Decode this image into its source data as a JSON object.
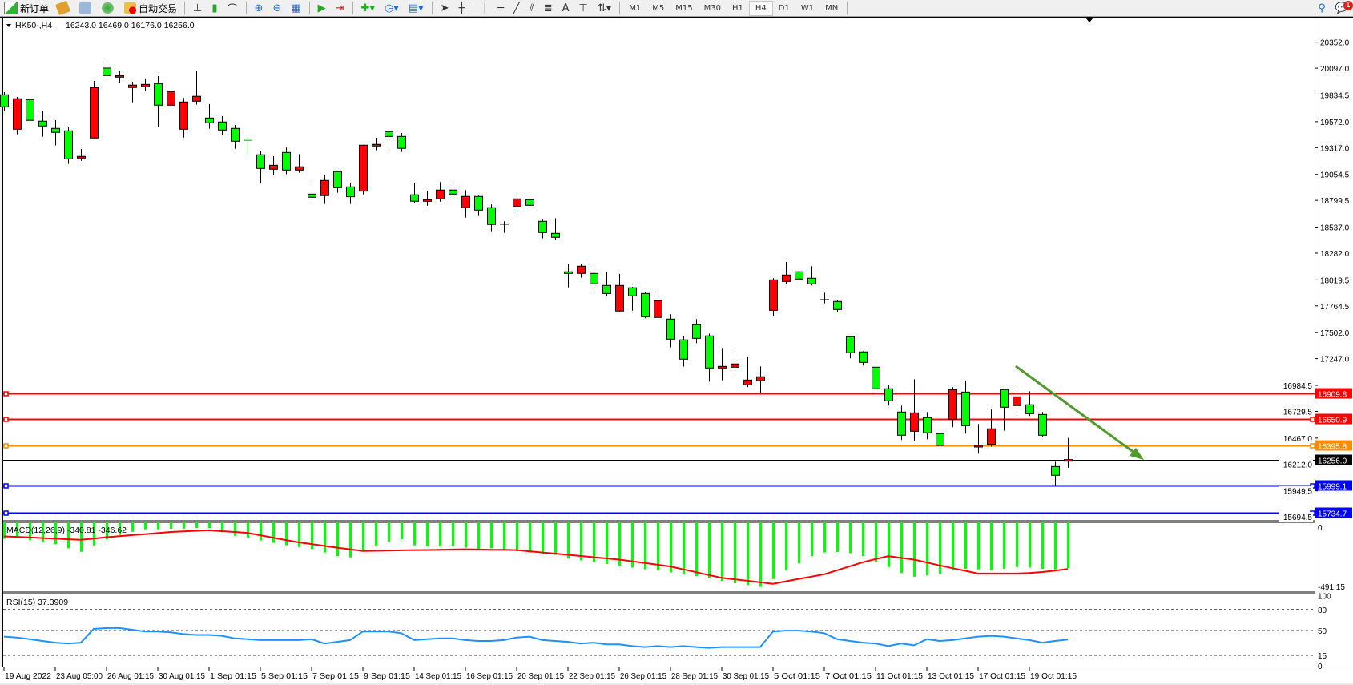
{
  "toolbar": {
    "new_order_label": "新订单",
    "auto_trading_label": "自动交易",
    "timeframes": [
      "M1",
      "M5",
      "M15",
      "M30",
      "H1",
      "H4",
      "D1",
      "W1",
      "MN"
    ],
    "selected_timeframe": "H4",
    "text_tool_label": "A",
    "icons": [
      "new-order-icon",
      "folder-icon",
      "market-watch-icon",
      "signals-icon",
      "auto-trading-icon",
      "bar-chart-icon",
      "candlestick-icon",
      "line-chart-icon",
      "zoom-in-icon",
      "zoom-out-icon",
      "tile-windows-icon",
      "autoscroll-icon",
      "chart-shift-icon",
      "indicators-icon",
      "periods-icon",
      "templates-icon",
      "cursor-icon",
      "crosshair-icon",
      "vertical-line-icon",
      "horizontal-line-icon",
      "trendline-icon",
      "channel-icon",
      "fibonacci-icon",
      "text-icon",
      "text-label-icon",
      "arrows-icon",
      "search-icon",
      "chat-icon"
    ],
    "notification_count": "1"
  },
  "chart_header": {
    "symbol": "HK50-,H4",
    "ohlc": "16243.0 16469.0 16176.0 16256.0"
  },
  "chart_data": [
    {
      "type": "candlestick",
      "ylim": [
        15656,
        20593
      ],
      "colors": {
        "bull": "#ff0000",
        "bear": "#00ff00",
        "outline": "#000000"
      },
      "y_ticks": [
        "20352.0",
        "20097.0",
        "19834.5",
        "19572.0",
        "19317.0",
        "19054.5",
        "18799.5",
        "18537.0",
        "18282.0",
        "18019.5",
        "17764.5",
        "17502.0",
        "17247.0",
        "16984.5",
        "16729.5",
        "16467.0",
        "16212.0",
        "15949.5",
        "15694.5"
      ],
      "x_labels": [
        "19 Aug 2022",
        "23 Aug 05:00",
        "26 Aug 01:15",
        "30 Aug 01:15",
        "1 Sep 01:15",
        "5 Sep 01:15",
        "7 Sep 01:15",
        "9 Sep 01:15",
        "14 Sep 01:15",
        "16 Sep 01:15",
        "20 Sep 01:15",
        "22 Sep 01:15",
        "26 Sep 01:15",
        "28 Sep 01:15",
        "30 Sep 01:15",
        "5 Oct 01:15",
        "7 Oct 01:15",
        "11 Oct 01:15",
        "13 Oct 01:15",
        "17 Oct 01:15",
        "19 Oct 01:15"
      ],
      "ohlc": [
        [
          19836,
          19862,
          19679,
          19718
        ],
        [
          19498,
          19815,
          19448,
          19797
        ],
        [
          19789,
          19795,
          19569,
          19585
        ],
        [
          19577,
          19674,
          19424,
          19530
        ],
        [
          19506,
          19587,
          19338,
          19467
        ],
        [
          19482,
          19524,
          19157,
          19207
        ],
        [
          19215,
          19304,
          19188,
          19231
        ],
        [
          19412,
          19972,
          19405,
          19907
        ],
        [
          20098,
          20145,
          19959,
          20025
        ],
        [
          20009,
          20074,
          19951,
          20025
        ],
        [
          19907,
          19964,
          19762,
          19931
        ],
        [
          19915,
          19988,
          19872,
          19938
        ],
        [
          19946,
          20019,
          19519,
          19734
        ],
        [
          19734,
          19872,
          19699,
          19868
        ],
        [
          19498,
          19805,
          19416,
          19765
        ],
        [
          19773,
          20074,
          19739,
          19821
        ],
        [
          19608,
          19744,
          19503,
          19561
        ],
        [
          19569,
          19626,
          19440,
          19490
        ],
        [
          19506,
          19540,
          19306,
          19380
        ],
        [
          19388,
          19420,
          19243,
          19388
        ],
        [
          19247,
          19288,
          18968,
          19113
        ],
        [
          19105,
          19233,
          19047,
          19144
        ],
        [
          19270,
          19317,
          19055,
          19097
        ],
        [
          19097,
          19254,
          19071,
          19129
        ],
        [
          18861,
          18956,
          18780,
          18830
        ],
        [
          18846,
          19050,
          18764,
          18995
        ],
        [
          19082,
          19092,
          18874,
          18924
        ],
        [
          18932,
          18966,
          18764,
          18835
        ],
        [
          18890,
          19345,
          18858,
          19341
        ],
        [
          19333,
          19414,
          19291,
          19349
        ],
        [
          19475,
          19508,
          19275,
          19427
        ],
        [
          19427,
          19461,
          19275,
          19310
        ],
        [
          18854,
          18966,
          18772,
          18791
        ],
        [
          18791,
          18893,
          18748,
          18806
        ],
        [
          18814,
          18979,
          18787,
          18901
        ],
        [
          18901,
          18948,
          18819,
          18861
        ],
        [
          18728,
          18901,
          18630,
          18838
        ],
        [
          18838,
          18846,
          18654,
          18704
        ],
        [
          18728,
          18759,
          18497,
          18563
        ],
        [
          18567,
          18594,
          18481,
          18567
        ],
        [
          18743,
          18872,
          18662,
          18814
        ],
        [
          18806,
          18838,
          18717,
          18751
        ],
        [
          18594,
          18618,
          18426,
          18484
        ],
        [
          18476,
          18625,
          18413,
          18437
        ],
        [
          18099,
          18180,
          17946,
          18083
        ],
        [
          18083,
          18172,
          18041,
          18154
        ],
        [
          18083,
          18148,
          17931,
          17981
        ],
        [
          17965,
          18093,
          17860,
          17886
        ],
        [
          17714,
          18078,
          17703,
          17965
        ],
        [
          17942,
          17950,
          17718,
          17863
        ],
        [
          17886,
          17902,
          17643,
          17658
        ],
        [
          17651,
          17889,
          17645,
          17816
        ],
        [
          17635,
          17682,
          17357,
          17438
        ],
        [
          17431,
          17464,
          17168,
          17242
        ],
        [
          17580,
          17635,
          17399,
          17446
        ],
        [
          17470,
          17493,
          17022,
          17155
        ],
        [
          17155,
          17352,
          17034,
          17171
        ],
        [
          17163,
          17336,
          17116,
          17195
        ],
        [
          16990,
          17265,
          16967,
          17037
        ],
        [
          17030,
          17171,
          16912,
          17069
        ],
        [
          17721,
          18036,
          17663,
          18020
        ],
        [
          18004,
          18195,
          17981,
          18067
        ],
        [
          18099,
          18122,
          17973,
          18028
        ],
        [
          18036,
          18154,
          17965,
          17981
        ],
        [
          17824,
          17894,
          17789,
          17824
        ],
        [
          17808,
          17824,
          17706,
          17729
        ],
        [
          17462,
          17470,
          17250,
          17305
        ],
        [
          17313,
          17320,
          17179,
          17210
        ],
        [
          17163,
          17242,
          16880,
          16951
        ],
        [
          16951,
          16990,
          16786,
          16833
        ],
        [
          16723,
          16786,
          16448,
          16495
        ],
        [
          16534,
          17045,
          16440,
          16715
        ],
        [
          16668,
          16723,
          16456,
          16519
        ],
        [
          16511,
          16636,
          16377,
          16395
        ],
        [
          16652,
          16967,
          16574,
          16943
        ],
        [
          16919,
          17030,
          16511,
          16589
        ],
        [
          16387,
          16605,
          16314,
          16395
        ],
        [
          16405,
          16747,
          16382,
          16558
        ],
        [
          16943,
          16950,
          16539,
          16770
        ],
        [
          16786,
          16935,
          16723,
          16872
        ],
        [
          16794,
          16927,
          16684,
          16707
        ],
        [
          16699,
          16723,
          16479,
          16495
        ],
        [
          16188,
          16235,
          16000,
          16102
        ],
        [
          16243,
          16469,
          16176,
          16256
        ]
      ],
      "doji_colors": {
        "19": "#33dd33"
      },
      "horizontal_lines": [
        {
          "price": "16909.8",
          "color": "#ff0000"
        },
        {
          "price": "16650.9",
          "color": "#ff0000"
        },
        {
          "price": "16395.8",
          "color": "#ff8c00"
        },
        {
          "price": "16256.0",
          "color": "#000000"
        },
        {
          "price": "15999.1",
          "color": "#0000ff"
        },
        {
          "price": "15734.7",
          "color": "#0000ff"
        }
      ],
      "trendline": {
        "color": "#4e9a2a",
        "from": [
          71,
          16909.8
        ],
        "to": [
          81,
          15999.1
        ]
      }
    },
    {
      "type": "bar+line",
      "label": "MACD(12,26,9) -340.81 -346.62",
      "ylim": [
        -491.15,
        0
      ],
      "y_ticks": [
        "0",
        "-491.15"
      ],
      "histogram_color": "#00ff00",
      "signal_color": "#ff0000",
      "histogram": [
        -97,
        -91,
        -108,
        -124,
        -142,
        -175,
        -204,
        -151,
        -101,
        -64,
        -38,
        -18,
        -18,
        -13,
        -12,
        -7,
        -7,
        -42,
        -71,
        -90,
        -110,
        -130,
        -150,
        -165,
        -180,
        -210,
        -240,
        -250,
        -200,
        -160,
        -120,
        -100,
        -150,
        -160,
        -160,
        -155,
        -170,
        -180,
        -175,
        -190,
        -200,
        -210,
        -220,
        -230,
        -260,
        -275,
        -290,
        -305,
        -320,
        -335,
        -350,
        -360,
        -375,
        -390,
        -405,
        -420,
        -445,
        -465,
        -480,
        -495,
        -430,
        -360,
        -300,
        -240,
        -210,
        -205,
        -215,
        -240,
        -290,
        -330,
        -380,
        -410,
        -400,
        -385,
        -360,
        -345,
        -350,
        -360,
        -345,
        -330,
        -335,
        -345,
        -350,
        -340.81
      ],
      "signal": [
        -76,
        -80,
        -85,
        -90,
        -95,
        -100,
        -105,
        -95,
        -83,
        -75,
        -66,
        -58,
        -49,
        -40,
        -35,
        -30,
        -26,
        -33,
        -40,
        -47,
        -67,
        -87,
        -107,
        -126,
        -140,
        -155,
        -170,
        -183,
        -198,
        -196,
        -194,
        -192,
        -190,
        -189,
        -187,
        -185,
        -183,
        -185,
        -187,
        -188,
        -190,
        -200,
        -210,
        -219,
        -229,
        -239,
        -249,
        -259,
        -269,
        -283,
        -297,
        -311,
        -326,
        -350,
        -373,
        -397,
        -420,
        -432,
        -444,
        -457,
        -469,
        -449,
        -429,
        -410,
        -390,
        -357,
        -324,
        -291,
        -265,
        -240,
        -255,
        -269,
        -293,
        -317,
        -340,
        -362,
        -384,
        -384,
        -384,
        -384,
        -380,
        -372,
        -360,
        -346.62
      ]
    },
    {
      "type": "line",
      "label": "RSI(15) 37.3909",
      "ylim": [
        0,
        100
      ],
      "y_ticks": [
        "100",
        "80",
        "50",
        "15",
        "0"
      ],
      "levels": [
        80,
        50,
        15
      ],
      "color": "#1e90ff",
      "values": [
        41.5,
        40.3,
        37.8,
        35.4,
        32.9,
        31.7,
        33,
        52.5,
        53.7,
        53.7,
        51.3,
        48.8,
        48.8,
        47.6,
        45.1,
        43.9,
        43.9,
        42.7,
        39,
        37.8,
        36.6,
        36.6,
        36.6,
        36.6,
        37.8,
        31.7,
        34.1,
        36.6,
        48.8,
        48.8,
        48.8,
        46.4,
        36.6,
        37.8,
        39,
        39,
        36.6,
        35.4,
        35.4,
        36.6,
        40.3,
        41.5,
        36.6,
        35.4,
        34.1,
        31.7,
        32.9,
        30.4,
        30.4,
        28,
        26.7,
        28,
        26.7,
        28,
        26.7,
        25.5,
        26.7,
        26.7,
        26.7,
        26.7,
        48.8,
        50,
        50,
        48.8,
        46.4,
        37.8,
        35.4,
        32.9,
        31.7,
        28,
        31.7,
        29.2,
        37.8,
        35.4,
        36.6,
        39,
        41.5,
        42.7,
        41.5,
        39,
        36.6,
        32.9,
        35.4,
        37.39
      ]
    }
  ]
}
